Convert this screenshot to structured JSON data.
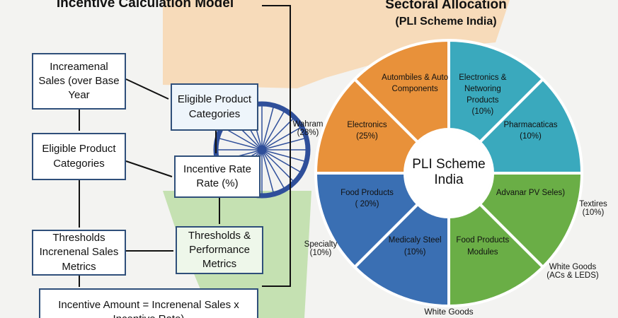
{
  "left": {
    "title": "Incentive Calculation Model",
    "nodes": [
      {
        "label": "Increamenal Sales (over Base Year"
      },
      {
        "label": "Eligible Product Categories"
      },
      {
        "label": "Eligible Product Categories"
      },
      {
        "label": "Incentive Rate Rate (%)"
      },
      {
        "label": "Thresholds Increnenal Sales Metrics"
      },
      {
        "label": "Thresholds & Performance Metrics"
      },
      {
        "label": "Incentive Amount = Increnenal Sales x Incentive Rate)"
      }
    ]
  },
  "right": {
    "title": "Sectoral Allocation",
    "subtitle": "(PLI Scheme India)",
    "center": "PLI Scheme India",
    "segments": [
      {
        "label": "Electronics & Networing Products",
        "share": "(10%)",
        "color": "#3aa9bd"
      },
      {
        "label": "Pharmacaticas",
        "share": "(10%)",
        "color": "#3aa9bd"
      },
      {
        "label": "Advanar PV Seles)",
        "color": "#6aae46"
      },
      {
        "label": "Food Products Modules",
        "color": "#6aae46"
      },
      {
        "label": "Medicaly Steel",
        "share": "(1̇0%)",
        "color": "#3a6fb3"
      },
      {
        "label": "Food Products",
        "share": "( 20%)",
        "color": "#3a6fb3"
      },
      {
        "label": "Electronics",
        "share": "(25%)",
        "color": "#e8913a"
      },
      {
        "label": "Autombiles & Auto Components",
        "color": "#e8913a"
      }
    ],
    "outer_labels": [
      {
        "label": "Wahram (28%)"
      },
      {
        "label": "Specialty (10%)"
      },
      {
        "label": "Textires (10%)"
      },
      {
        "label": "White Goods (ACs & LEDS)"
      },
      {
        "label": "White Goods"
      }
    ]
  }
}
